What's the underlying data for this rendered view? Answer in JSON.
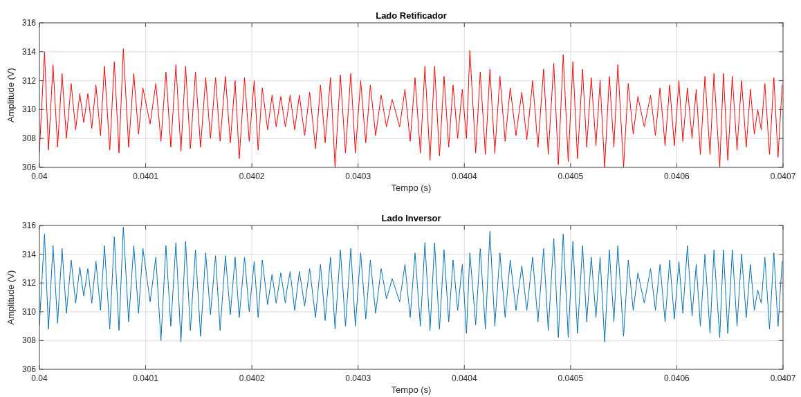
{
  "chart_data": [
    {
      "type": "line",
      "title": "Lado Retificador",
      "xlabel": "Tempo (s)",
      "ylabel": "Amplitude (V)",
      "xlim": [
        0.04,
        0.0407
      ],
      "xticks": [
        0.04,
        0.0401,
        0.0402,
        0.0403,
        0.0404,
        0.0405,
        0.0406,
        0.0407
      ],
      "ylim": [
        306,
        316
      ],
      "yticks": [
        306,
        308,
        310,
        312,
        314,
        316
      ],
      "grid": true,
      "x": [
        0.04,
        0.0400048,
        0.0400085,
        0.0400128,
        0.0400171,
        0.0400213,
        0.0400254,
        0.0400299,
        0.0400341,
        0.040038,
        0.0400417,
        0.0400456,
        0.0400493,
        0.0400532,
        0.0400575,
        0.0400612,
        0.0400662,
        0.0400705,
        0.0400749,
        0.040079,
        0.040084,
        0.0400888,
        0.0400933,
        0.0400974,
        0.0401042,
        0.0401096,
        0.0401144,
        0.0401191,
        0.0401237,
        0.0401285,
        0.0401332,
        0.0401376,
        0.0401421,
        0.0401469,
        0.0401517,
        0.0401565,
        0.040161,
        0.0401658,
        0.0401701,
        0.0401751,
        0.0401797,
        0.0401842,
        0.0401881,
        0.0401931,
        0.0401975,
        0.0402022,
        0.0402059,
        0.0402098,
        0.0402148,
        0.040219,
        0.0402229,
        0.0402272,
        0.0402315,
        0.0402327,
        0.040236,
        0.0402403,
        0.0402447,
        0.0402497,
        0.0402544,
        0.0402599,
        0.0402646,
        0.040269,
        0.040274,
        0.0402783,
        0.0402833,
        0.0402881,
        0.0402931,
        0.0402974,
        0.0403024,
        0.0403072,
        0.0403115,
        0.0403165,
        0.0403217,
        0.0403267,
        0.0403321,
        0.0403391,
        0.0403441,
        0.040349,
        0.0403536,
        0.0403586,
        0.0403629,
        0.0403677,
        0.040372,
        0.0403766,
        0.0403809,
        0.0403853,
        0.0403894,
        0.0403937,
        0.0403981,
        0.040402,
        0.0404052,
        0.0404107,
        0.040415,
        0.0404198,
        0.0404241,
        0.0404287,
        0.0404335,
        0.0404384,
        0.0404432,
        0.0404486,
        0.0404541,
        0.0404588,
        0.0404643,
        0.0404693,
        0.0404746,
        0.040479,
        0.0404842,
        0.0404885,
        0.0404931,
        0.0404978,
        0.0405022,
        0.0405065,
        0.0405113,
        0.0405152,
        0.0405195,
        0.0405239,
        0.0405278,
        0.0405321,
        0.0405365,
        0.0405408,
        0.0405445,
        0.0405499,
        0.0405543,
        0.040559,
        0.0405634,
        0.0405694,
        0.0405753,
        0.0405799,
        0.0405842,
        0.040589,
        0.0405933,
        0.0405977,
        0.040602,
        0.0406057,
        0.04061,
        0.0406144,
        0.0406183,
        0.0406222,
        0.0406265,
        0.0406313,
        0.040635,
        0.0406404,
        0.0406439,
        0.040648,
        0.0406523,
        0.0406567,
        0.040661,
        0.0406654,
        0.0406693,
        0.040673,
        0.0406762,
        0.0406795,
        0.0406829,
        0.0406873,
        0.0406914,
        0.0406953,
        0.0406992
      ],
      "series": [
        {
          "color": "#ff0000",
          "values": [
            307.1,
            314.0,
            307.2,
            313.1,
            307.4,
            312.5,
            308.0,
            311.8,
            308.6,
            311.1,
            309.1,
            311.1,
            308.7,
            311.7,
            308.2,
            313.0,
            307.2,
            313.3,
            307.0,
            314.2,
            307.4,
            312.5,
            308.3,
            311.5,
            309.0,
            311.8,
            307.8,
            312.6,
            307.4,
            313.1,
            307.1,
            313.0,
            307.3,
            312.6,
            307.4,
            312.2,
            308.0,
            312.2,
            307.8,
            312.3,
            307.7,
            312.0,
            306.6,
            312.2,
            307.8,
            312.0,
            307.2,
            311.5,
            308.6,
            311.0,
            308.8,
            310.9,
            308.8,
            309.3,
            311.0,
            308.6,
            311.0,
            308.2,
            311.2,
            307.3,
            311.7,
            307.7,
            312.2,
            306.0,
            312.4,
            307.0,
            312.5,
            307.0,
            312.0,
            307.7,
            311.7,
            308.2,
            311.0,
            308.8,
            310.7,
            308.8,
            311.4,
            307.8,
            312.2,
            307.0,
            313.0,
            306.5,
            313.0,
            306.8,
            312.3,
            307.4,
            311.7,
            308.0,
            311.4,
            308.0,
            314.1,
            307.0,
            312.6,
            306.9,
            312.8,
            307.0,
            312.3,
            307.8,
            311.5,
            308.2,
            311.2,
            307.9,
            312.0,
            307.4,
            312.8,
            306.9,
            313.2,
            306.2,
            313.8,
            306.4,
            313.3,
            306.6,
            312.8,
            307.4,
            312.2,
            307.5,
            312.0,
            306.0,
            312.3,
            307.4,
            313.1,
            306.0,
            311.8,
            308.3,
            310.9,
            308.8,
            311.0,
            308.2,
            311.5,
            307.5,
            311.7,
            307.5,
            312.0,
            307.8,
            311.5,
            308.0,
            311.4,
            306.9,
            312.3,
            306.9,
            312.5,
            306.0,
            312.5,
            306.5,
            312.3,
            307.2,
            312.0,
            307.4,
            311.4,
            308.3,
            310.0,
            308.6,
            311.8,
            306.9,
            312.2,
            306.7,
            311.7
          ]
        }
      ]
    },
    {
      "type": "line",
      "title": "Lado Inversor",
      "xlabel": "Tempo (s)",
      "ylabel": "Amplitude (V)",
      "xlim": [
        0.04,
        0.0407
      ],
      "xticks": [
        0.04,
        0.0401,
        0.0402,
        0.0403,
        0.0404,
        0.0405,
        0.0406,
        0.0407
      ],
      "ylim": [
        306,
        316
      ],
      "yticks": [
        306,
        308,
        310,
        312,
        314,
        316
      ],
      "grid": true,
      "x": [
        0.04,
        0.0400048,
        0.0400085,
        0.0400128,
        0.0400171,
        0.0400213,
        0.0400254,
        0.0400299,
        0.0400341,
        0.040038,
        0.0400417,
        0.0400456,
        0.0400493,
        0.0400532,
        0.0400575,
        0.0400612,
        0.0400662,
        0.0400705,
        0.0400749,
        0.040079,
        0.040084,
        0.0400888,
        0.0400933,
        0.0400974,
        0.0401042,
        0.0401096,
        0.0401144,
        0.0401191,
        0.0401237,
        0.0401285,
        0.0401332,
        0.0401376,
        0.0401421,
        0.0401469,
        0.0401517,
        0.0401565,
        0.040161,
        0.0401658,
        0.0401701,
        0.0401751,
        0.0401797,
        0.0401842,
        0.0401881,
        0.0401931,
        0.0401975,
        0.0402022,
        0.0402059,
        0.0402098,
        0.0402148,
        0.040219,
        0.0402229,
        0.0402272,
        0.0402315,
        0.0402327,
        0.040236,
        0.0402403,
        0.0402447,
        0.0402497,
        0.0402544,
        0.0402599,
        0.0402646,
        0.040269,
        0.040274,
        0.0402783,
        0.0402833,
        0.0402881,
        0.0402931,
        0.0402974,
        0.0403024,
        0.0403072,
        0.0403115,
        0.0403165,
        0.0403217,
        0.0403267,
        0.0403321,
        0.0403391,
        0.0403441,
        0.040349,
        0.0403536,
        0.0403586,
        0.0403629,
        0.0403677,
        0.040372,
        0.0403766,
        0.0403809,
        0.0403853,
        0.0403894,
        0.0403937,
        0.0403981,
        0.040402,
        0.0404052,
        0.0404107,
        0.040415,
        0.0404198,
        0.0404241,
        0.0404287,
        0.0404335,
        0.0404384,
        0.0404432,
        0.0404486,
        0.0404541,
        0.0404588,
        0.0404643,
        0.0404693,
        0.0404746,
        0.040479,
        0.0404842,
        0.0404885,
        0.0404931,
        0.0404978,
        0.0405022,
        0.0405065,
        0.0405113,
        0.0405152,
        0.0405195,
        0.0405239,
        0.0405278,
        0.0405321,
        0.0405365,
        0.0405408,
        0.0405445,
        0.0405499,
        0.0405543,
        0.040559,
        0.0405634,
        0.0405694,
        0.0405753,
        0.0405799,
        0.0405842,
        0.040589,
        0.0405933,
        0.0405977,
        0.040602,
        0.0406057,
        0.04061,
        0.0406144,
        0.0406183,
        0.0406222,
        0.0406265,
        0.0406313,
        0.040635,
        0.0406404,
        0.0406439,
        0.040648,
        0.0406523,
        0.0406567,
        0.040661,
        0.0406654,
        0.0406693,
        0.040673,
        0.0406762,
        0.0406795,
        0.0406829,
        0.0406873,
        0.0406914,
        0.0406953,
        0.0406992
      ],
      "series": [
        {
          "color": "#0072bd",
          "values": [
            309.1,
            315.4,
            308.8,
            314.6,
            309.2,
            314.4,
            309.9,
            313.6,
            310.6,
            313.1,
            311.1,
            313.0,
            310.6,
            313.5,
            310.1,
            314.6,
            308.8,
            315.2,
            308.7,
            315.9,
            309.3,
            314.6,
            309.9,
            314.4,
            310.7,
            313.8,
            308.0,
            314.6,
            309.0,
            314.8,
            307.9,
            314.9,
            308.7,
            314.3,
            308.3,
            314.1,
            309.8,
            313.9,
            308.7,
            313.9,
            309.8,
            313.8,
            309.6,
            313.8,
            310.0,
            313.5,
            309.6,
            313.6,
            310.5,
            312.6,
            310.6,
            312.7,
            310.6,
            311.4,
            312.8,
            310.1,
            312.8,
            310.4,
            313.0,
            309.6,
            313.3,
            309.4,
            313.8,
            308.8,
            314.3,
            309.0,
            314.4,
            309.0,
            314.1,
            309.5,
            313.6,
            309.9,
            313.0,
            310.9,
            312.3,
            310.7,
            313.3,
            309.6,
            314.1,
            309.0,
            314.8,
            308.7,
            314.8,
            308.8,
            314.3,
            309.3,
            313.6,
            310.1,
            313.3,
            308.5,
            314.1,
            309.1,
            314.4,
            308.8,
            315.6,
            309.0,
            314.1,
            309.6,
            313.6,
            310.1,
            313.2,
            310.1,
            313.8,
            309.3,
            314.4,
            308.7,
            315.1,
            308.2,
            315.4,
            308.2,
            314.9,
            308.5,
            314.6,
            309.3,
            313.8,
            309.6,
            313.8,
            307.9,
            314.3,
            309.3,
            314.6,
            308.3,
            313.6,
            310.1,
            312.7,
            310.6,
            313.0,
            310.1,
            313.3,
            309.3,
            313.6,
            309.5,
            313.5,
            309.9,
            314.6,
            309.7,
            313.3,
            309.0,
            314.0,
            308.5,
            314.3,
            308.2,
            314.3,
            308.5,
            314.3,
            309.0,
            314.0,
            309.6,
            313.3,
            310.1,
            311.5,
            310.6,
            313.8,
            308.8,
            314.1,
            309.0,
            313.5
          ]
        }
      ]
    }
  ]
}
